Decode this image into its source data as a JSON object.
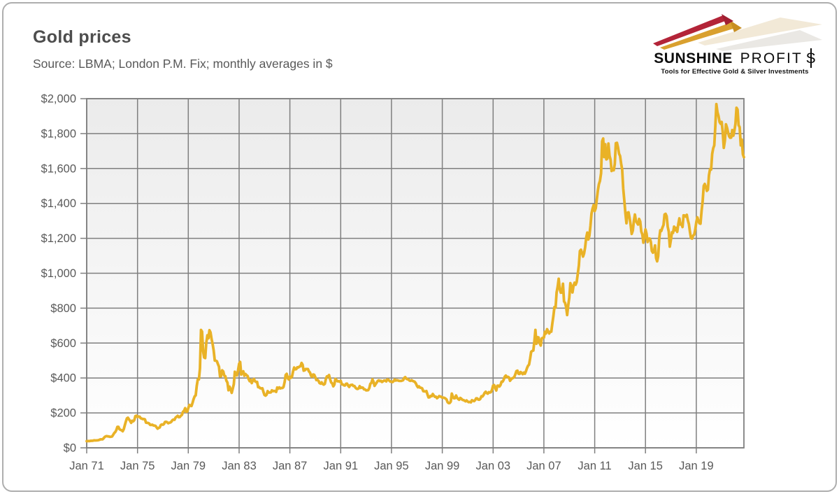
{
  "header": {
    "title": "Gold prices",
    "subtitle": "Source: LBMA; London P.M. Fix; monthly averages in $"
  },
  "logo": {
    "brand_bold": "SUNSHINE",
    "brand_regular": "PROFIT",
    "brand_s": "S",
    "tagline": "Tools for Effective Gold & Silver Investments",
    "spike_red": "#b32438",
    "spike_gold": "#d9a02f",
    "echo_beige": "#e2cfa6",
    "echo_gray": "#d8d5cd"
  },
  "chart_data": {
    "type": "line",
    "title": "Gold prices",
    "series_name": "Gold price, London P.M. Fix, monthly average in $",
    "xlabel": "",
    "ylabel": "",
    "grid": true,
    "legend": "none",
    "xlim": [
      1971.0,
      2022.75
    ],
    "ylim": [
      0,
      2000
    ],
    "x_start_year": 1971,
    "x_step_months": 1,
    "line_color": "#e9b227",
    "grid_color": "#7f7f7f",
    "label_color": "#595959",
    "plot_bg_top": "#ebebeb",
    "plot_bg_bottom": "#ffffff",
    "x_ticks": [
      {
        "year": 1971,
        "label": "Jan 71"
      },
      {
        "year": 1975,
        "label": "Jan 75"
      },
      {
        "year": 1979,
        "label": "Jan 79"
      },
      {
        "year": 1983,
        "label": "Jan 83"
      },
      {
        "year": 1987,
        "label": "Jan 87"
      },
      {
        "year": 1991,
        "label": "Jan 91"
      },
      {
        "year": 1995,
        "label": "Jan 95"
      },
      {
        "year": 1999,
        "label": "Jan 99"
      },
      {
        "year": 2003,
        "label": "Jan 03"
      },
      {
        "year": 2007,
        "label": "Jan 07"
      },
      {
        "year": 2011,
        "label": "Jan 11"
      },
      {
        "year": 2015,
        "label": "Jan 15"
      },
      {
        "year": 2019,
        "label": "Jan 19"
      }
    ],
    "y_ticks": [
      {
        "value": 0,
        "label": "$0"
      },
      {
        "value": 200,
        "label": "$200"
      },
      {
        "value": 400,
        "label": "$400"
      },
      {
        "value": 600,
        "label": "$600"
      },
      {
        "value": 800,
        "label": "$800"
      },
      {
        "value": 1000,
        "label": "$1,000"
      },
      {
        "value": 1200,
        "label": "$1,200"
      },
      {
        "value": 1400,
        "label": "$1,400"
      },
      {
        "value": 1600,
        "label": "$1,600"
      },
      {
        "value": 1800,
        "label": "$1,800"
      },
      {
        "value": 2000,
        "label": "$2,000"
      }
    ],
    "values": [
      37.9,
      38.9,
      38.9,
      39.0,
      40.5,
      40.1,
      41.0,
      42.7,
      42.0,
      42.5,
      42.9,
      43.5,
      45.8,
      48.3,
      48.3,
      49.0,
      54.6,
      62.1,
      65.7,
      67.0,
      65.5,
      65.0,
      62.9,
      63.9,
      65.1,
      74.2,
      84.4,
      90.5,
      102.0,
      120.1,
      120.2,
      106.8,
      103.0,
      100.1,
      94.8,
      106.7,
      129.2,
      150.2,
      168.4,
      172.2,
      163.3,
      154.1,
      143.0,
      154.6,
      151.8,
      158.8,
      181.7,
      183.9,
      176.3,
      179.6,
      178.2,
      169.5,
      167.4,
      164.3,
      165.1,
      163.0,
      144.1,
      142.9,
      142.4,
      139.3,
      131.5,
      131.1,
      132.6,
      128.4,
      126.9,
      125.7,
      117.8,
      109.9,
      114.2,
      116.1,
      130.5,
      133.9,
      132.3,
      136.3,
      148.2,
      149.2,
      146.6,
      140.8,
      143.4,
      144.9,
      149.5,
      158.9,
      162.1,
      160.5,
      173.2,
      178.2,
      183.7,
      175.3,
      176.3,
      183.8,
      188.7,
      206.3,
      212.1,
      227.4,
      206.1,
      207.8,
      227.3,
      245.7,
      242.0,
      239.2,
      257.6,
      279.1,
      294.7,
      300.8,
      355.1,
      391.7,
      392.0,
      455.1,
      675.3,
      665.3,
      553.6,
      517.4,
      513.8,
      600.7,
      644.3,
      627.1,
      673.6,
      661.1,
      623.5,
      594.9,
      557.4,
      499.8,
      498.8,
      495.8,
      479.7,
      464.8,
      409.3,
      410.2,
      443.6,
      437.8,
      413.4,
      410.1,
      384.4,
      374.1,
      330.0,
      350.3,
      333.8,
      314.9,
      339.0,
      364.2,
      435.8,
      422.2,
      414.9,
      444.3,
      481.3,
      491.9,
      419.7,
      432.9,
      438.1,
      412.8,
      422.7,
      416.2,
      411.8,
      393.6,
      381.7,
      389.4,
      370.9,
      386.3,
      394.3,
      381.4,
      377.4,
      377.7,
      347.4,
      347.7,
      341.1,
      340.2,
      341.2,
      320.1,
      302.7,
      299.1,
      304.2,
      324.7,
      316.8,
      316.6,
      317.3,
      329.4,
      324.3,
      325.9,
      325.2,
      320.8,
      345.4,
      339.0,
      345.7,
      340.4,
      342.6,
      342.6,
      348.5,
      376.6,
      417.7,
      423.5,
      398.8,
      391.2,
      408.3,
      401.1,
      408.9,
      438.4,
      460.2,
      449.6,
      450.5,
      461.2,
      460.2,
      465.4,
      467.6,
      486.3,
      476.6,
      442.1,
      443.6,
      451.6,
      451.0,
      451.3,
      437.6,
      431.3,
      412.8,
      406.8,
      420.2,
      418.5,
      404.0,
      387.8,
      390.1,
      384.1,
      371.0,
      367.6,
      375.0,
      365.4,
      361.8,
      366.9,
      394.3,
      409.4,
      410.1,
      416.8,
      393.1,
      374.3,
      369.2,
      352.3,
      362.5,
      394.7,
      388.4,
      380.7,
      381.7,
      378.2,
      383.6,
      363.8,
      363.3,
      358.4,
      356.8,
      366.7,
      367.7,
      356.2,
      348.7,
      358.7,
      360.2,
      361.1,
      354.5,
      353.9,
      344.3,
      338.5,
      337.2,
      340.8,
      353.0,
      343.0,
      345.5,
      344.4,
      335.1,
      334.8,
      329.0,
      329.4,
      330.1,
      342.1,
      366.7,
      371.9,
      392.2,
      378.8,
      355.3,
      364.2,
      373.8,
      383.3,
      386.9,
      381.9,
      384.1,
      377.3,
      381.3,
      385.6,
      385.5,
      380.4,
      391.6,
      389.8,
      384.4,
      379.3,
      378.6,
      376.6,
      382.1,
      391.0,
      385.1,
      387.6,
      386.2,
      383.8,
      383.1,
      383.1,
      385.3,
      387.4,
      400.3,
      404.8,
      396.2,
      392.8,
      391.9,
      385.3,
      383.5,
      387.5,
      383.1,
      381.1,
      377.9,
      369.0,
      355.1,
      346.6,
      352.1,
      344.5,
      343.9,
      340.8,
      324.1,
      324.0,
      322.8,
      324.9,
      306.0,
      288.7,
      289.2,
      297.5,
      295.9,
      308.3,
      299.1,
      292.3,
      292.9,
      284.1,
      288.9,
      296.0,
      294.1,
      291.6,
      287.1,
      287.3,
      286.0,
      282.6,
      276.9,
      261.3,
      256.1,
      256.7,
      264.7,
      310.7,
      292.9,
      283.7,
      284.3,
      299.9,
      286.4,
      279.7,
      275.2,
      285.7,
      281.6,
      274.5,
      273.7,
      270.0,
      266.0,
      271.5,
      265.5,
      261.9,
      263.0,
      260.5,
      272.4,
      270.2,
      267.5,
      272.4,
      283.4,
      283.1,
      276.2,
      275.9,
      281.5,
      295.5,
      294.1,
      302.7,
      314.5,
      321.2,
      313.3,
      310.3,
      319.2,
      316.6,
      319.2,
      332.4,
      356.9,
      359.0,
      340.5,
      328.2,
      355.7,
      356.4,
      351.0,
      359.8,
      379.0,
      378.9,
      389.9,
      406.9,
      414.0,
      405.3,
      406.7,
      403.0,
      383.8,
      392.4,
      398.1,
      400.5,
      405.3,
      420.5,
      439.4,
      442.1,
      424.2,
      423.4,
      434.2,
      429.2,
      421.9,
      430.7,
      424.5,
      437.9,
      456.0,
      469.9,
      476.7,
      510.1,
      549.9,
      555.0,
      557.1,
      610.6,
      675.4,
      596.2,
      633.8,
      632.6,
      598.2,
      585.8,
      627.8,
      629.8,
      631.2,
      664.7,
      654.9,
      679.4,
      666.9,
      655.5,
      665.3,
      665.4,
      712.7,
      754.6,
      806.2,
      803.2,
      889.6,
      922.3,
      968.4,
      909.7,
      888.7,
      889.5,
      939.8,
      839.0,
      829.9,
      806.6,
      760.9,
      816.1,
      858.7,
      943.2,
      924.3,
      890.2,
      928.6,
      945.7,
      934.2,
      949.4,
      996.6,
      1043.2,
      1127.0,
      1134.7,
      1118.0,
      1095.4,
      1113.3,
      1148.7,
      1205.4,
      1232.9,
      1193.0,
      1215.8,
      1271.0,
      1342.0,
      1369.9,
      1390.6,
      1356.4,
      1372.7,
      1424.0,
      1473.8,
      1510.4,
      1528.7,
      1572.8,
      1755.8,
      1771.9,
      1665.2,
      1739.0,
      1652.3,
      1656.1,
      1742.6,
      1673.8,
      1650.1,
      1585.5,
      1596.7,
      1589.9,
      1626.0,
      1744.8,
      1747.0,
      1721.1,
      1684.8,
      1671.8,
      1627.6,
      1593.1,
      1485.1,
      1414.0,
      1343.4,
      1286.7,
      1347.1,
      1348.8,
      1316.6,
      1275.8,
      1225.4,
      1244.3,
      1300.0,
      1336.1,
      1299.0,
      1288.7,
      1279.1,
      1310.9,
      1296.0,
      1238.8,
      1222.5,
      1175.3,
      1200.6,
      1251.0,
      1227.1,
      1178.6,
      1197.9,
      1198.6,
      1181.5,
      1128.3,
      1117.9,
      1124.8,
      1159.3,
      1086.4,
      1068.3,
      1097.9,
      1199.9,
      1246.0,
      1242.3,
      1260.9,
      1276.4,
      1336.7,
      1340.2,
      1326.6,
      1266.6,
      1238.4,
      1152.2,
      1192.1,
      1234.2,
      1231.4,
      1266.9,
      1246.0,
      1260.3,
      1236.8,
      1283.0,
      1314.1,
      1279.5,
      1281.9,
      1264.5,
      1331.3,
      1330.7,
      1324.7,
      1334.8,
      1303.5,
      1281.6,
      1237.7,
      1201.7,
      1198.4,
      1215.4,
      1220.7,
      1250.4,
      1291.8,
      1320.1,
      1300.9,
      1285.9,
      1283.9,
      1359.0,
      1412.9,
      1500.4,
      1511.3,
      1494.8,
      1471.9,
      1479.1,
      1560.7,
      1597.1,
      1593.8,
      1683.2,
      1715.8,
      1732.1,
      1840.8,
      1968.6,
      1921.9,
      1900.3,
      1866.3,
      1856.0,
      1866.6,
      1808.2,
      1718.2,
      1760.0,
      1853.5,
      1834.6,
      1807.9,
      1784.2,
      1776.1,
      1777.0,
      1820.2,
      1787.9,
      1816.9,
      1856.3,
      1947.8,
      1937.3,
      1848.1,
      1836.5,
      1732.8,
      1765.4,
      1681.2,
      1664.5
    ]
  }
}
